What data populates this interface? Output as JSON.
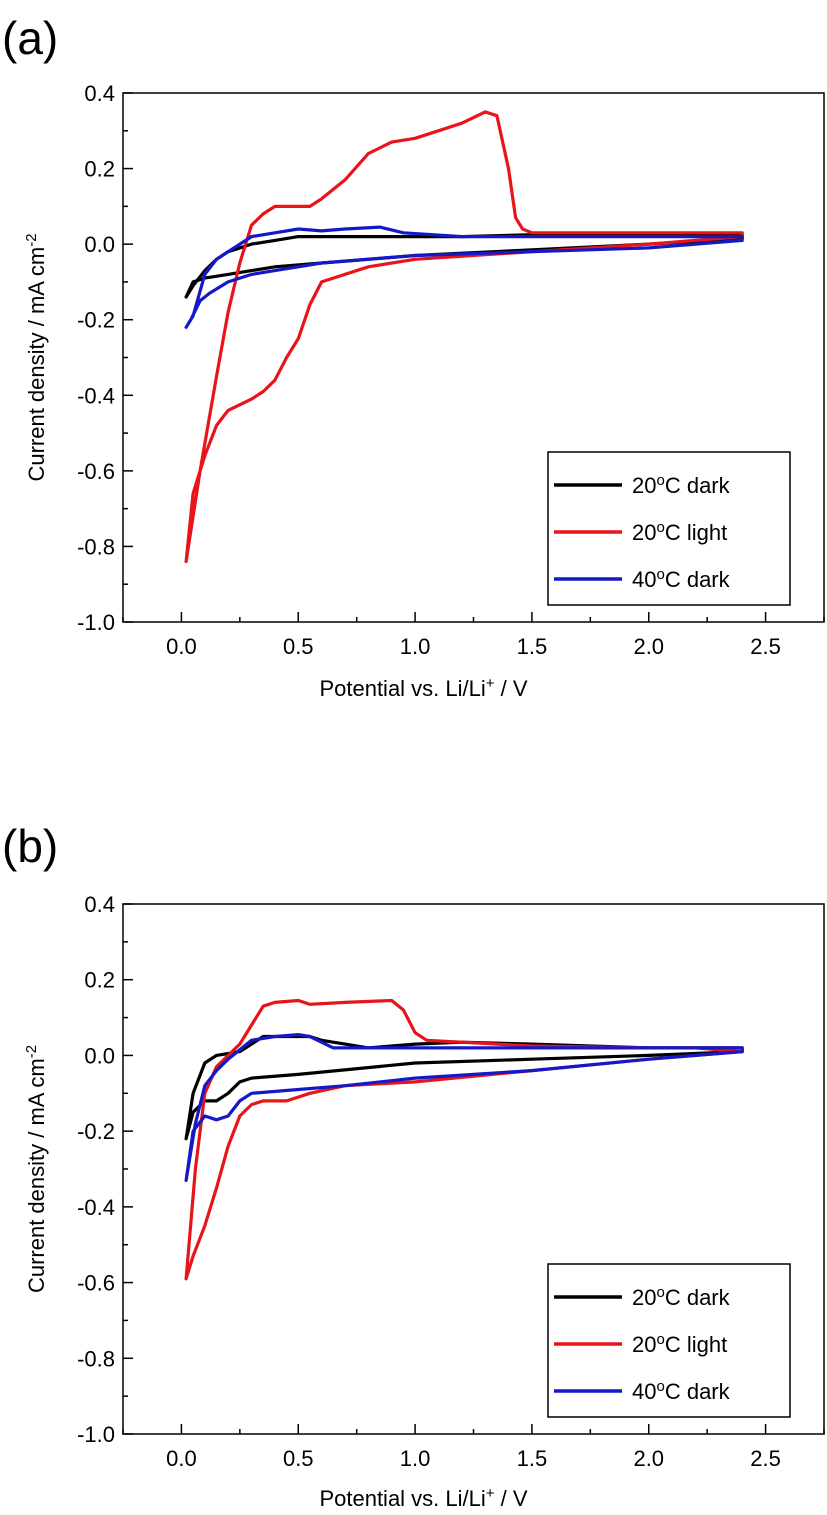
{
  "chart_data": [
    {
      "panel": "(a)",
      "type": "line",
      "xlabel": "Potential vs. Li/Li",
      "xlabel_sup": "+",
      "xlabel_tail": " / V",
      "ylabel": "Current density / mA cm",
      "ylabel_sup": "-2",
      "xlim": [
        -0.25,
        2.75
      ],
      "ylim": [
        -1.0,
        0.4
      ],
      "xticks": [
        0.0,
        0.5,
        1.0,
        1.5,
        2.0,
        2.5
      ],
      "xtick_labels": [
        "0.0",
        "0.5",
        "1.0",
        "1.5",
        "2.0",
        "2.5"
      ],
      "yticks": [
        -1.0,
        -0.8,
        -0.6,
        -0.4,
        -0.2,
        0.0,
        0.2,
        0.4
      ],
      "ytick_labels": [
        "-1.0",
        "-0.8",
        "-0.6",
        "-0.4",
        "-0.2",
        "0.0",
        "0.2",
        "0.4"
      ],
      "legend_position": "lower-right",
      "series": [
        {
          "name": "20",
          "name_sup": "o",
          "name_tail": "C dark",
          "color": "#000000",
          "points": [
            [
              0.02,
              -0.14
            ],
            [
              0.05,
              -0.11
            ],
            [
              0.1,
              -0.07
            ],
            [
              0.15,
              -0.04
            ],
            [
              0.2,
              -0.02
            ],
            [
              0.3,
              0.0
            ],
            [
              0.4,
              0.01
            ],
            [
              0.5,
              0.02
            ],
            [
              0.6,
              0.02
            ],
            [
              0.8,
              0.02
            ],
            [
              1.0,
              0.02
            ],
            [
              1.2,
              0.02
            ],
            [
              1.5,
              0.025
            ],
            [
              2.0,
              0.025
            ],
            [
              2.4,
              0.025
            ],
            [
              2.4,
              0.015
            ],
            [
              2.0,
              0.0
            ],
            [
              1.5,
              -0.015
            ],
            [
              1.0,
              -0.03
            ],
            [
              0.8,
              -0.04
            ],
            [
              0.6,
              -0.05
            ],
            [
              0.4,
              -0.06
            ],
            [
              0.3,
              -0.07
            ],
            [
              0.2,
              -0.08
            ],
            [
              0.1,
              -0.09
            ],
            [
              0.05,
              -0.1
            ],
            [
              0.02,
              -0.14
            ]
          ]
        },
        {
          "name": "20",
          "name_sup": "o",
          "name_tail": "C light",
          "color": "#e8141a",
          "points": [
            [
              0.02,
              -0.84
            ],
            [
              0.08,
              -0.6
            ],
            [
              0.15,
              -0.35
            ],
            [
              0.2,
              -0.18
            ],
            [
              0.25,
              -0.05
            ],
            [
              0.3,
              0.05
            ],
            [
              0.35,
              0.08
            ],
            [
              0.4,
              0.1
            ],
            [
              0.5,
              0.1
            ],
            [
              0.55,
              0.1
            ],
            [
              0.6,
              0.12
            ],
            [
              0.7,
              0.17
            ],
            [
              0.8,
              0.24
            ],
            [
              0.9,
              0.27
            ],
            [
              1.0,
              0.28
            ],
            [
              1.1,
              0.3
            ],
            [
              1.2,
              0.32
            ],
            [
              1.3,
              0.35
            ],
            [
              1.35,
              0.34
            ],
            [
              1.4,
              0.2
            ],
            [
              1.43,
              0.07
            ],
            [
              1.46,
              0.04
            ],
            [
              1.5,
              0.03
            ],
            [
              2.0,
              0.03
            ],
            [
              2.4,
              0.03
            ],
            [
              2.4,
              0.02
            ],
            [
              2.0,
              0.0
            ],
            [
              1.5,
              -0.02
            ],
            [
              1.0,
              -0.04
            ],
            [
              0.8,
              -0.06
            ],
            [
              0.6,
              -0.1
            ],
            [
              0.55,
              -0.16
            ],
            [
              0.5,
              -0.25
            ],
            [
              0.45,
              -0.3
            ],
            [
              0.4,
              -0.36
            ],
            [
              0.35,
              -0.39
            ],
            [
              0.3,
              -0.41
            ],
            [
              0.2,
              -0.44
            ],
            [
              0.15,
              -0.48
            ],
            [
              0.1,
              -0.56
            ],
            [
              0.05,
              -0.66
            ],
            [
              0.02,
              -0.84
            ]
          ]
        },
        {
          "name": "40",
          "name_sup": "o",
          "name_tail": "C dark",
          "color": "#1419c8",
          "points": [
            [
              0.02,
              -0.22
            ],
            [
              0.05,
              -0.19
            ],
            [
              0.1,
              -0.08
            ],
            [
              0.15,
              -0.04
            ],
            [
              0.2,
              -0.02
            ],
            [
              0.3,
              0.02
            ],
            [
              0.4,
              0.03
            ],
            [
              0.5,
              0.04
            ],
            [
              0.6,
              0.035
            ],
            [
              0.7,
              0.04
            ],
            [
              0.85,
              0.045
            ],
            [
              0.95,
              0.03
            ],
            [
              1.2,
              0.02
            ],
            [
              1.5,
              0.02
            ],
            [
              2.0,
              0.02
            ],
            [
              2.4,
              0.02
            ],
            [
              2.4,
              0.01
            ],
            [
              2.0,
              -0.01
            ],
            [
              1.5,
              -0.02
            ],
            [
              1.0,
              -0.03
            ],
            [
              0.6,
              -0.05
            ],
            [
              0.4,
              -0.07
            ],
            [
              0.3,
              -0.08
            ],
            [
              0.2,
              -0.1
            ],
            [
              0.12,
              -0.13
            ],
            [
              0.08,
              -0.15
            ],
            [
              0.04,
              -0.2
            ],
            [
              0.02,
              -0.22
            ]
          ]
        }
      ]
    },
    {
      "panel": "(b)",
      "type": "line",
      "xlabel": "Potential vs. Li/Li",
      "xlabel_sup": "+",
      "xlabel_tail": " / V",
      "ylabel": "Current density / mA cm",
      "ylabel_sup": "-2",
      "xlim": [
        -0.25,
        2.75
      ],
      "ylim": [
        -1.0,
        0.4
      ],
      "xticks": [
        0.0,
        0.5,
        1.0,
        1.5,
        2.0,
        2.5
      ],
      "xtick_labels": [
        "0.0",
        "0.5",
        "1.0",
        "1.5",
        "2.0",
        "2.5"
      ],
      "yticks": [
        -1.0,
        -0.8,
        -0.6,
        -0.4,
        -0.2,
        0.0,
        0.2,
        0.4
      ],
      "ytick_labels": [
        "-1.0",
        "-0.8",
        "-0.6",
        "-0.4",
        "-0.2",
        "0.0",
        "0.2",
        "0.4"
      ],
      "legend_position": "lower-right",
      "series": [
        {
          "name": "20",
          "name_sup": "o",
          "name_tail": "C dark",
          "color": "#000000",
          "points": [
            [
              0.02,
              -0.22
            ],
            [
              0.05,
              -0.1
            ],
            [
              0.1,
              -0.02
            ],
            [
              0.15,
              0.0
            ],
            [
              0.25,
              0.01
            ],
            [
              0.35,
              0.05
            ],
            [
              0.45,
              0.05
            ],
            [
              0.55,
              0.05
            ],
            [
              0.6,
              0.04
            ],
            [
              0.7,
              0.03
            ],
            [
              0.8,
              0.02
            ],
            [
              1.0,
              0.03
            ],
            [
              1.2,
              0.035
            ],
            [
              1.5,
              0.03
            ],
            [
              2.0,
              0.02
            ],
            [
              2.4,
              0.02
            ],
            [
              2.4,
              0.01
            ],
            [
              2.0,
              0.0
            ],
            [
              1.5,
              -0.01
            ],
            [
              1.0,
              -0.02
            ],
            [
              0.5,
              -0.05
            ],
            [
              0.3,
              -0.06
            ],
            [
              0.25,
              -0.07
            ],
            [
              0.2,
              -0.1
            ],
            [
              0.15,
              -0.12
            ],
            [
              0.1,
              -0.12
            ],
            [
              0.05,
              -0.15
            ],
            [
              0.02,
              -0.22
            ]
          ]
        },
        {
          "name": "20",
          "name_sup": "o",
          "name_tail": "C light",
          "color": "#e8141a",
          "points": [
            [
              0.02,
              -0.59
            ],
            [
              0.06,
              -0.3
            ],
            [
              0.1,
              -0.1
            ],
            [
              0.15,
              -0.03
            ],
            [
              0.2,
              0.0
            ],
            [
              0.25,
              0.03
            ],
            [
              0.3,
              0.08
            ],
            [
              0.35,
              0.13
            ],
            [
              0.4,
              0.14
            ],
            [
              0.5,
              0.145
            ],
            [
              0.55,
              0.135
            ],
            [
              0.7,
              0.14
            ],
            [
              0.9,
              0.145
            ],
            [
              0.95,
              0.12
            ],
            [
              1.0,
              0.06
            ],
            [
              1.05,
              0.04
            ],
            [
              1.5,
              0.025
            ],
            [
              2.0,
              0.02
            ],
            [
              2.2,
              0.02
            ],
            [
              2.4,
              0.01
            ],
            [
              2.0,
              -0.01
            ],
            [
              1.5,
              -0.04
            ],
            [
              1.0,
              -0.07
            ],
            [
              0.7,
              -0.08
            ],
            [
              0.55,
              -0.1
            ],
            [
              0.45,
              -0.12
            ],
            [
              0.35,
              -0.12
            ],
            [
              0.3,
              -0.13
            ],
            [
              0.25,
              -0.16
            ],
            [
              0.2,
              -0.24
            ],
            [
              0.15,
              -0.35
            ],
            [
              0.1,
              -0.45
            ],
            [
              0.05,
              -0.53
            ],
            [
              0.02,
              -0.59
            ]
          ]
        },
        {
          "name": "40",
          "name_sup": "o",
          "name_tail": "C dark",
          "color": "#1419c8",
          "points": [
            [
              0.02,
              -0.33
            ],
            [
              0.06,
              -0.18
            ],
            [
              0.1,
              -0.08
            ],
            [
              0.15,
              -0.04
            ],
            [
              0.2,
              -0.01
            ],
            [
              0.3,
              0.04
            ],
            [
              0.4,
              0.05
            ],
            [
              0.5,
              0.055
            ],
            [
              0.55,
              0.05
            ],
            [
              0.65,
              0.02
            ],
            [
              0.8,
              0.02
            ],
            [
              1.0,
              0.02
            ],
            [
              1.5,
              0.02
            ],
            [
              2.0,
              0.02
            ],
            [
              2.4,
              0.02
            ],
            [
              2.4,
              0.01
            ],
            [
              2.0,
              -0.01
            ],
            [
              1.5,
              -0.04
            ],
            [
              1.0,
              -0.06
            ],
            [
              0.7,
              -0.08
            ],
            [
              0.5,
              -0.09
            ],
            [
              0.3,
              -0.1
            ],
            [
              0.25,
              -0.12
            ],
            [
              0.2,
              -0.16
            ],
            [
              0.15,
              -0.17
            ],
            [
              0.1,
              -0.16
            ],
            [
              0.05,
              -0.2
            ],
            [
              0.02,
              -0.33
            ]
          ]
        }
      ]
    }
  ]
}
